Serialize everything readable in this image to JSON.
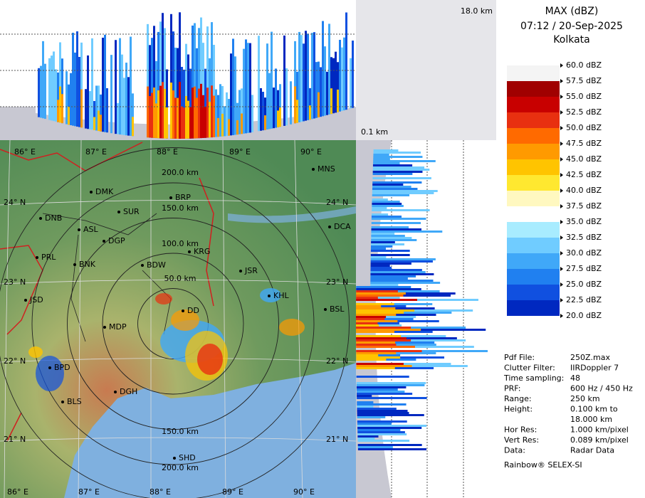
{
  "header": {
    "title": "MAX (dBZ)",
    "time": "07:12 / 20-Sep-2025",
    "location": "Kolkata"
  },
  "profile": {
    "top_label": "18.0 km",
    "bottom_label": "0.1 km"
  },
  "legend": {
    "labels": [
      "60.0 dBZ",
      "57.5 dBZ",
      "55.0 dBZ",
      "52.5 dBZ",
      "50.0 dBZ",
      "47.5 dBZ",
      "45.0 dBZ",
      "42.5 dBZ",
      "40.0 dBZ",
      "37.5 dBZ",
      "35.0 dBZ",
      "32.5 dBZ",
      "30.0 dBZ",
      "27.5 dBZ",
      "25.0 dBZ",
      "22.5 dBZ",
      "20.0 dBZ"
    ],
    "band_colors": [
      "#f4f4f4",
      "#a00000",
      "#c80000",
      "#e83010",
      "#ff6a00",
      "#ff9a00",
      "#ffc400",
      "#ffe830",
      "#fff8c0",
      "#ffffff",
      "#a8ecff",
      "#70ccff",
      "#40a8f8",
      "#2080f0",
      "#1050e0",
      "#0028c0"
    ]
  },
  "info": [
    {
      "key": "Pdf File:",
      "value": [
        "250Z.max"
      ]
    },
    {
      "key": "Clutter Filter:",
      "value": [
        "IIRDoppler 7"
      ]
    },
    {
      "key": "Time sampling:",
      "value": [
        "48"
      ]
    },
    {
      "key": "PRF:",
      "value": [
        "600 Hz / 450 Hz"
      ]
    },
    {
      "key": "Range:",
      "value": [
        "250 km"
      ]
    },
    {
      "key": "Height:",
      "value": [
        "0.100 km to",
        "18.000 km"
      ]
    },
    {
      "key": "Hor Res:",
      "value": [
        "1.000 km/pixel"
      ]
    },
    {
      "key": "Vert Res:",
      "value": [
        "0.089 km/pixel"
      ]
    },
    {
      "key": "Data:",
      "value": [
        "Radar Data"
      ]
    }
  ],
  "footer": "Rainbow® SELEX-SI",
  "map": {
    "lon_labels": [
      "86° E",
      "87° E",
      "88° E",
      "89° E",
      "90° E"
    ],
    "lat_labels": [
      "24° N",
      "23° N",
      "22° N",
      "21° N"
    ],
    "ring_labels": [
      "50.0 km",
      "100.0 km",
      "150.0 km",
      "200.0 km"
    ],
    "cities": [
      "MNS",
      "DMK",
      "BRP",
      "SUR",
      "DNB",
      "ASL",
      "DGP",
      "KRG",
      "DCA",
      "PRL",
      "BNK",
      "BDW",
      "JSR",
      "KHL",
      "BSL",
      "DD",
      "MDP",
      "JSD",
      "BPD",
      "DGH",
      "BLS",
      "SHD"
    ]
  }
}
